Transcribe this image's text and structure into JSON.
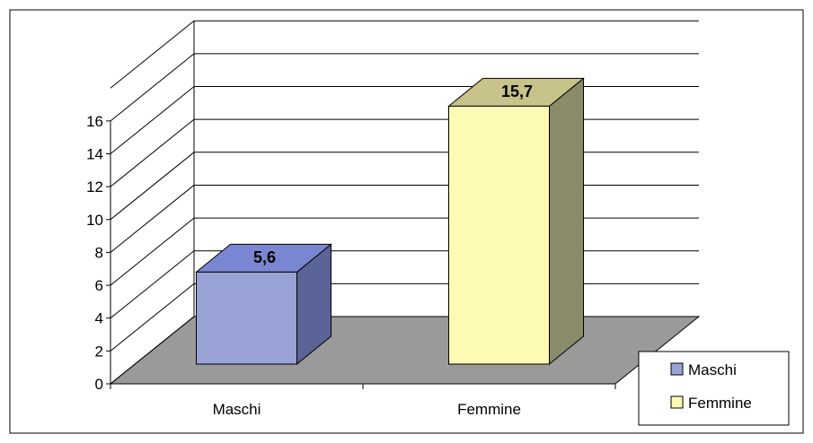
{
  "chart_data": {
    "type": "bar",
    "style": "3d-column",
    "categories": [
      "Maschi",
      "Femmine"
    ],
    "values": [
      5.6,
      15.7
    ],
    "value_labels": [
      "5,6",
      "15,7"
    ],
    "y_ticks": [
      "0",
      "2",
      "4",
      "6",
      "8",
      "10",
      "12",
      "14",
      "16"
    ],
    "ylim": [
      0,
      18
    ],
    "title": "",
    "xlabel": "",
    "ylabel": "",
    "grid": true,
    "legend": {
      "placement": "bottom-right",
      "entries": [
        {
          "label": "Maschi",
          "color": "#98a2d4"
        },
        {
          "label": "Femmine",
          "color": "#fdfab4"
        }
      ]
    },
    "colors": {
      "Maschi": {
        "front": "#98a2d4",
        "top": "#7b86d2",
        "side": "#5a6496"
      },
      "Femmine": {
        "front": "#fdfab4",
        "top": "#c7c38a",
        "side": "#8a8b68"
      },
      "floor": "#9a9a9a"
    }
  }
}
